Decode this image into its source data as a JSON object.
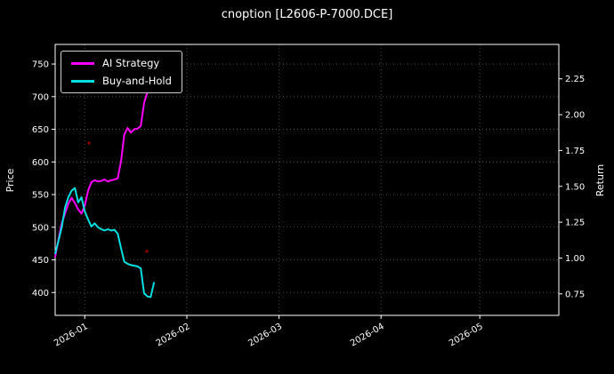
{
  "chart_data": {
    "type": "line",
    "title": "cnoption [L2606-P-7000.DCE]",
    "background": "#000000",
    "text_color": "#ffffff",
    "ylabel_left": "Price",
    "ylabel_right": "Return",
    "grid": true,
    "grid_style": "dotted",
    "legend_position": "upper left",
    "xlim_days": [
      0,
      153
    ],
    "x_ticks": [
      {
        "day": 9,
        "label": "2026-01"
      },
      {
        "day": 40,
        "label": "2026-02"
      },
      {
        "day": 68,
        "label": "2026-03"
      },
      {
        "day": 99,
        "label": "2026-04"
      },
      {
        "day": 129,
        "label": "2026-05"
      }
    ],
    "ylim_price": [
      365,
      780
    ],
    "yticks_price": [
      400,
      450,
      500,
      550,
      600,
      650,
      700,
      750
    ],
    "ylim_return": [
      0.6,
      2.49
    ],
    "yticks_return": [
      "0.75",
      "1.00",
      "1.25",
      "1.50",
      "1.75",
      "2.00",
      "2.25"
    ],
    "series": [
      {
        "name": "AI Strategy",
        "color": "#ff00ff",
        "axis": "price",
        "points": [
          [
            0,
            455
          ],
          [
            1,
            481
          ],
          [
            2,
            506
          ],
          [
            3,
            521
          ],
          [
            4,
            536
          ],
          [
            5,
            545
          ],
          [
            6,
            537
          ],
          [
            7,
            527
          ],
          [
            8,
            521
          ],
          [
            9,
            533
          ],
          [
            10,
            556
          ],
          [
            11,
            569
          ],
          [
            12,
            572
          ],
          [
            13,
            570
          ],
          [
            14,
            571
          ],
          [
            15,
            573
          ],
          [
            16,
            570
          ],
          [
            17,
            572
          ],
          [
            18,
            573
          ],
          [
            19,
            575
          ],
          [
            20,
            601
          ],
          [
            21,
            642
          ],
          [
            22,
            652
          ],
          [
            23,
            645
          ],
          [
            24,
            650
          ],
          [
            25,
            651
          ],
          [
            26,
            655
          ],
          [
            27,
            690
          ],
          [
            28,
            707
          ],
          [
            29,
            756
          ]
        ]
      },
      {
        "name": "Buy-and-Hold",
        "color": "#00e0e0",
        "axis": "price",
        "points": [
          [
            0,
            460
          ],
          [
            1,
            479
          ],
          [
            2,
            500
          ],
          [
            3,
            530
          ],
          [
            4,
            546
          ],
          [
            5,
            556
          ],
          [
            6,
            560
          ],
          [
            7,
            538
          ],
          [
            8,
            546
          ],
          [
            9,
            524
          ],
          [
            10,
            512
          ],
          [
            11,
            501
          ],
          [
            12,
            506
          ],
          [
            13,
            500
          ],
          [
            14,
            497
          ],
          [
            15,
            495
          ],
          [
            16,
            497
          ],
          [
            17,
            495
          ],
          [
            18,
            496
          ],
          [
            19,
            490
          ],
          [
            20,
            468
          ],
          [
            21,
            447
          ],
          [
            22,
            444
          ],
          [
            23,
            442
          ],
          [
            24,
            441
          ],
          [
            25,
            440
          ],
          [
            26,
            437
          ],
          [
            27,
            399
          ],
          [
            28,
            394
          ],
          [
            29,
            393
          ],
          [
            30,
            415
          ]
        ]
      }
    ],
    "markers": [
      {
        "day": 10.3,
        "price": 629,
        "color": "#990000"
      },
      {
        "day": 27.8,
        "price": 463,
        "color": "#990000"
      }
    ]
  }
}
